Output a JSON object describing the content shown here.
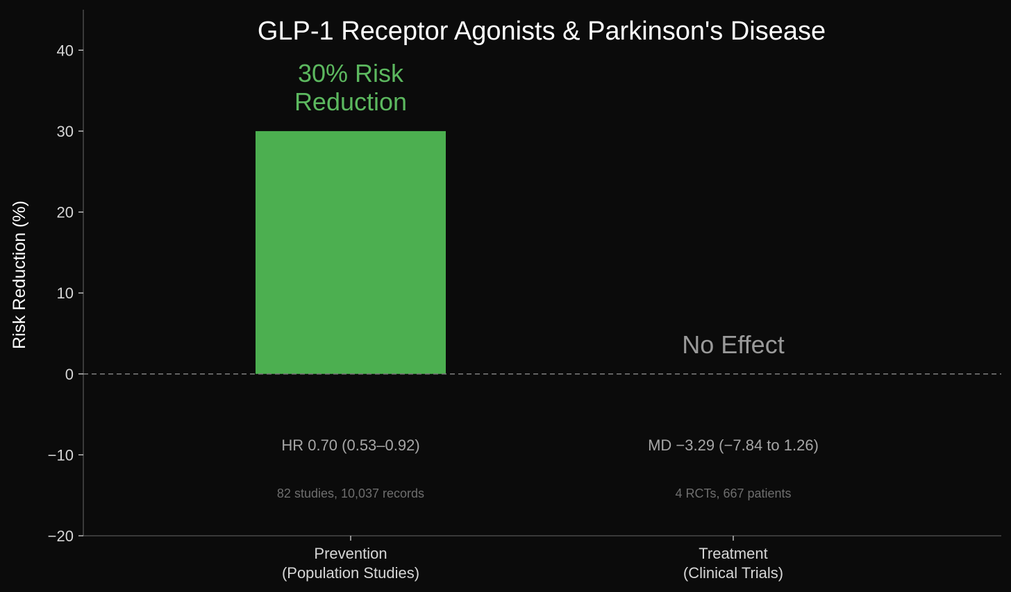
{
  "chart_data": {
    "type": "bar",
    "title": "GLP-1 Receptor Agonists & Parkinson's Disease",
    "ylabel": "Risk Reduction (%)",
    "xlabel": "",
    "ylim": [
      -20,
      45
    ],
    "yticks": [
      -20,
      -10,
      0,
      10,
      20,
      30,
      40
    ],
    "ytick_labels": [
      "−20",
      "−10",
      "0",
      "10",
      "20",
      "30",
      "40"
    ],
    "grid": false,
    "categories": [
      {
        "line1": "Prevention",
        "line2": "(Population Studies)"
      },
      {
        "line1": "Treatment",
        "line2": "(Clinical Trials)"
      }
    ],
    "values": [
      30,
      0
    ],
    "bar_labels": [
      {
        "line1": "30% Risk",
        "line2": "Reduction",
        "color": "#5cb85f"
      },
      {
        "line1": "No Effect",
        "line2": "",
        "color": "#9a9a9a"
      }
    ],
    "effect_stats": [
      "HR 0.70 (0.53–0.92)",
      "MD −3.29 (−7.84 to 1.26)"
    ],
    "sample_stats": [
      "82 studies, 10,037 records",
      "4 RCTs, 667 patients"
    ],
    "zero_line": {
      "style": "dashed",
      "color": "#777777"
    },
    "colors": {
      "background": "#0b0b0b",
      "prevention_bar": "#4caf50",
      "title": "#ffffff",
      "text": "#d6d6d6",
      "stat_text": "#a6a6a6",
      "sample_text": "#6e6e6e"
    }
  }
}
